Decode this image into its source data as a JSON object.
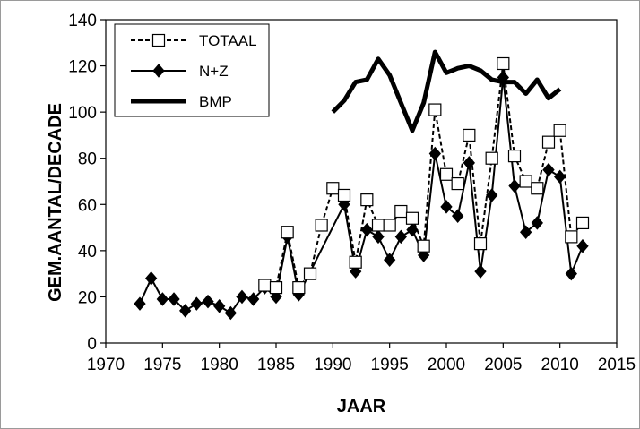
{
  "chart_data": {
    "type": "line",
    "title": "",
    "xlabel": "JAAR",
    "ylabel": "GEM.AANTAL/DECADE",
    "xlim": [
      1970,
      2015
    ],
    "ylim": [
      0,
      140
    ],
    "xticks": [
      "1970",
      "1975",
      "1980",
      "1985",
      "1990",
      "1995",
      "2000",
      "2005",
      "2010",
      "2015"
    ],
    "yticks": [
      "0",
      "20",
      "40",
      "60",
      "80",
      "100",
      "120",
      "140"
    ],
    "grid": false,
    "legend_position": "top-left",
    "series": [
      {
        "name": "TOTAAL",
        "style": "dashed",
        "marker": "open-square",
        "color": "#000000",
        "x": [
          1984,
          1985,
          1986,
          1987,
          1988,
          1989,
          1990,
          1991,
          1992,
          1993,
          1994,
          1995,
          1996,
          1997,
          1998,
          1999,
          2000,
          2001,
          2002,
          2003,
          2004,
          2005,
          2006,
          2007,
          2008,
          2009,
          2010,
          2011,
          2012
        ],
        "y": [
          25,
          24,
          48,
          24,
          30,
          51,
          67,
          64,
          35,
          62,
          51,
          51,
          57,
          54,
          42,
          101,
          73,
          69,
          90,
          43,
          80,
          121,
          81,
          70,
          67,
          87,
          92,
          46,
          52
        ]
      },
      {
        "name": "N+Z",
        "style": "solid",
        "marker": "filled-diamond",
        "color": "#000000",
        "x": [
          1973,
          1974,
          1975,
          1976,
          1977,
          1978,
          1979,
          1980,
          1981,
          1982,
          1983,
          1984,
          1985,
          1986,
          1987,
          1991,
          1992,
          1993,
          1994,
          1995,
          1996,
          1997,
          1998,
          1999,
          2000,
          2001,
          2002,
          2003,
          2004,
          2005,
          2006,
          2007,
          2008,
          2009,
          2010,
          2011,
          2012
        ],
        "y": [
          17,
          28,
          19,
          19,
          14,
          17,
          18,
          16,
          13,
          20,
          19,
          24,
          20,
          46,
          21,
          60,
          31,
          49,
          46,
          36,
          46,
          49,
          38,
          82,
          59,
          55,
          78,
          31,
          64,
          115,
          68,
          48,
          52,
          75,
          72,
          30,
          42
        ]
      },
      {
        "name": "BMP",
        "style": "thick",
        "marker": "none",
        "color": "#000000",
        "x": [
          1990,
          1991,
          1992,
          1993,
          1994,
          1995,
          1996,
          1997,
          1998,
          1999,
          2000,
          2001,
          2002,
          2003,
          2004,
          2005,
          2006,
          2007,
          2008,
          2009,
          2010
        ],
        "y": [
          100,
          105,
          113,
          114,
          123,
          116,
          104,
          92,
          104,
          126,
          117,
          119,
          120,
          118,
          114,
          113,
          113,
          108,
          114,
          106,
          110
        ]
      }
    ]
  }
}
